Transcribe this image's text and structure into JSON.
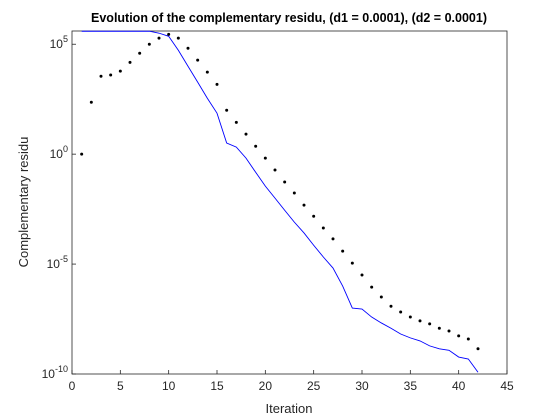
{
  "chart_data": {
    "type": "line",
    "title": "Evolution of the complementary residu, (d1 = 0.0001), (d2 = 0.0001)",
    "xlabel": "Iteration",
    "ylabel": "Complementary residu",
    "x": [
      1,
      2,
      3,
      4,
      5,
      6,
      7,
      8,
      9,
      10,
      11,
      12,
      13,
      14,
      15,
      16,
      17,
      18,
      19,
      20,
      21,
      22,
      23,
      24,
      25,
      26,
      27,
      28,
      29,
      30,
      31,
      32,
      33,
      34,
      35,
      36,
      37,
      38,
      39,
      40,
      41,
      42
    ],
    "series": [
      {
        "style": "line",
        "color": "#0000ff",
        "values": [
          390000,
          390000,
          390000,
          390000,
          390000,
          390000,
          390000,
          390000,
          320000,
          230000,
          53000,
          10000,
          1900,
          350,
          73,
          3.2,
          2.1,
          0.66,
          0.15,
          0.035,
          0.01,
          0.0028,
          0.00081,
          0.00026,
          7.2e-05,
          2.1e-05,
          6.6e-06,
          1e-06,
          1e-07,
          9e-08,
          3.9e-08,
          2.1e-08,
          1.2e-08,
          6.6e-09,
          4.4e-09,
          3.2e-09,
          1.9e-09,
          1.4e-09,
          1.2e-09,
          5.9e-10,
          4.8e-10,
          1.2e-10
        ]
      },
      {
        "style": "dots",
        "color": "#000000",
        "values": [
          1,
          230,
          3500,
          4000,
          6000,
          15000,
          39000,
          100000,
          190000,
          280000,
          190000,
          66000,
          19000,
          5400,
          1500,
          100,
          28,
          8.1,
          2.3,
          0.66,
          0.19,
          0.054,
          0.017,
          0.0048,
          0.0015,
          0.00044,
          0.00014,
          3.9e-05,
          1.1e-05,
          3.2e-06,
          9e-07,
          3.2e-07,
          1.2e-07,
          6.6e-08,
          3.9e-08,
          2.6e-08,
          1.9e-08,
          1.2e-08,
          9e-09,
          5.4e-09,
          3.9e-09,
          1.4e-09
        ]
      }
    ],
    "xlim": [
      0,
      45
    ],
    "xticks": [
      0,
      5,
      10,
      15,
      20,
      25,
      30,
      35,
      40,
      45
    ],
    "ylim": [
      1e-10,
      400000
    ],
    "yscale": "log",
    "yticks": [
      {
        "value": 1e-10,
        "label": "10",
        "exponent": "-10"
      },
      {
        "value": 1e-05,
        "label": "10",
        "exponent": "-5"
      },
      {
        "value": 1,
        "label": "10",
        "exponent": "0"
      },
      {
        "value": 100000,
        "label": "10",
        "exponent": "5"
      }
    ],
    "grid": false
  }
}
